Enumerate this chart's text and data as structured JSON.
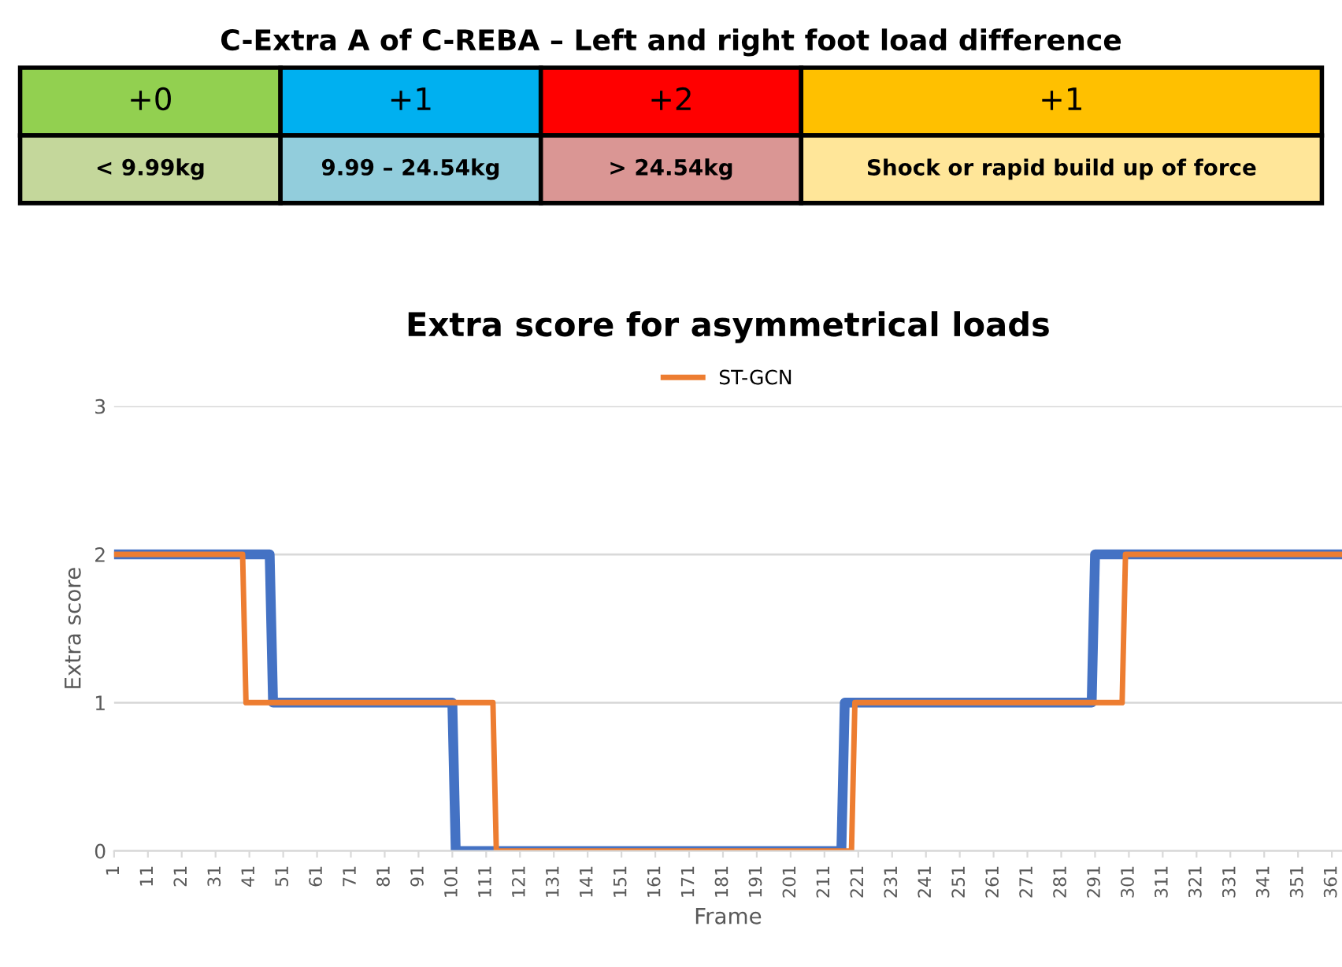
{
  "chart_data": [
    {
      "type": "other",
      "title": "C-Extra A of C-REBA – Left and right foot load difference",
      "annotations": [
        "+0",
        "+1",
        "+2",
        "+1",
        "< 9.99kg",
        "9.99 – 24.54kg",
        "> 24.54kg",
        "Shock or rapid build up of force"
      ],
      "colors": [
        "#92d050",
        "#00b0f0",
        "#ff0000",
        "#ffc000",
        "#c4d79b",
        "#92cddc",
        "#da9694",
        "#ffe699"
      ]
    },
    {
      "type": "line",
      "title": "Extra score for asymmetrical loads",
      "xlabel": "Frame",
      "ylabel": "Extra score",
      "series": [
        {
          "color": "#4472c4",
          "x": [
            1,
            47,
            48,
            101,
            102,
            216,
            217,
            290,
            291,
            364
          ],
          "values": [
            2,
            2,
            1,
            1,
            0,
            0,
            1,
            1,
            2,
            2
          ]
        },
        {
          "name": "ST-GCN",
          "color": "#ed7d31",
          "x": [
            1,
            39,
            40,
            113,
            114,
            219,
            220,
            299,
            300,
            364
          ],
          "values": [
            2,
            2,
            1,
            1,
            0,
            0,
            1,
            1,
            2,
            2
          ]
        }
      ],
      "xlim": [
        1,
        364
      ],
      "xticks": [
        1,
        11,
        21,
        31,
        41,
        51,
        61,
        71,
        81,
        91,
        101,
        111,
        121,
        131,
        141,
        151,
        161,
        171,
        181,
        191,
        201,
        211,
        221,
        231,
        241,
        251,
        261,
        271,
        281,
        291,
        301,
        311,
        321,
        331,
        341,
        351,
        361
      ],
      "ylim": [
        0,
        3
      ],
      "yticks": [
        0,
        1,
        2,
        3
      ],
      "grid": "y",
      "legend": "top",
      "marker": "none",
      "line_style": "solid"
    }
  ]
}
